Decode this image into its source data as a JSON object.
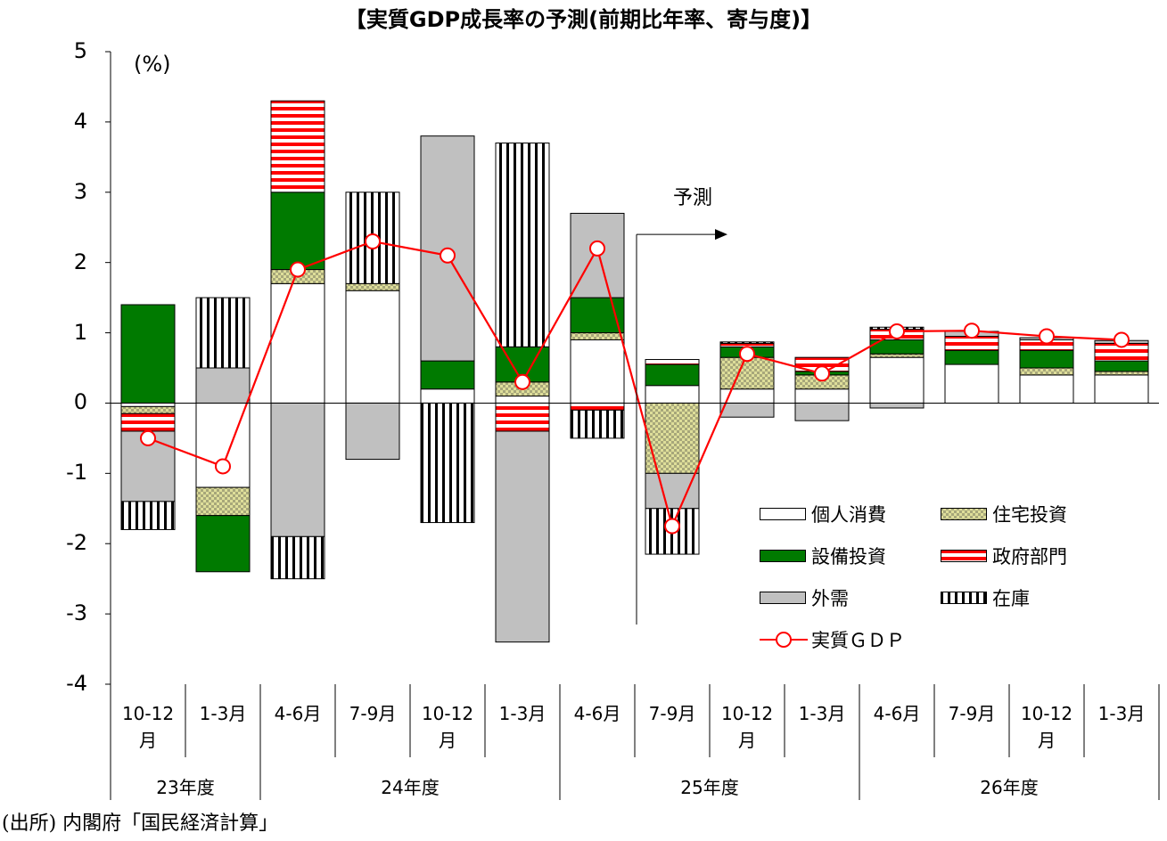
{
  "title": "【実質GDP成長率の予測(前期比年率、寄与度)】",
  "unit": "(%)",
  "forecast_label": "予測",
  "source": "(出所) 内閣府「国民経済計算」",
  "colors": {
    "consumption": "#ffffff",
    "housing": "#c8c896",
    "capex": "#008000",
    "government": "#ff0000",
    "exports": "#c0c0c0",
    "inventory": "#ffffff",
    "gdp_line": "#ff0000"
  },
  "chart_data": {
    "type": "bar",
    "stacked": true,
    "categories": [
      "10-12 月",
      "1-3月",
      "4-6月",
      "7-9月",
      "10-12 月",
      "1-3月",
      "4-6月",
      "7-9月",
      "10-12 月",
      "1-3月",
      "4-6月",
      "7-9月",
      "10-12 月",
      "1-3月"
    ],
    "category_lines": [
      [
        "10-12",
        "月"
      ],
      [
        "1-3月"
      ],
      [
        "4-6月"
      ],
      [
        "7-9月"
      ],
      [
        "10-12",
        "月"
      ],
      [
        "1-3月"
      ],
      [
        "4-6月"
      ],
      [
        "7-9月"
      ],
      [
        "10-12",
        "月"
      ],
      [
        "1-3月"
      ],
      [
        "4-6月"
      ],
      [
        "7-9月"
      ],
      [
        "10-12",
        "月"
      ],
      [
        "1-3月"
      ]
    ],
    "fiscal_years": [
      {
        "label": "23年度",
        "span": 2
      },
      {
        "label": "24年度",
        "span": 4
      },
      {
        "label": "25年度",
        "span": 4
      },
      {
        "label": "26年度",
        "span": 4
      }
    ],
    "ylim": [
      -4,
      5
    ],
    "yticks": [
      "5",
      "4",
      "3",
      "2",
      "1",
      "0",
      "-1",
      "-2",
      "-3",
      "-4"
    ],
    "forecast_start_index": 7,
    "series": [
      {
        "name": "個人消費",
        "key": "consumption",
        "values": [
          -0.05,
          -1.2,
          1.7,
          1.6,
          0.2,
          0.1,
          0.9,
          0.25,
          0.2,
          0.2,
          0.65,
          0.55,
          0.4,
          0.4
        ]
      },
      {
        "name": "住宅投資",
        "key": "housing",
        "values": [
          -0.1,
          -0.4,
          0.2,
          0.1,
          0,
          0.2,
          0.1,
          -1.0,
          0.45,
          0.2,
          0.05,
          0,
          0.1,
          0.05
        ]
      },
      {
        "name": "設備投資",
        "key": "capex",
        "values": [
          1.4,
          -0.8,
          1.1,
          0,
          0.4,
          0.5,
          0.5,
          0.3,
          0.15,
          0.05,
          0.2,
          0.2,
          0.25,
          0.15
        ]
      },
      {
        "name": "政府部門",
        "key": "government",
        "values": [
          -0.25,
          0,
          1.3,
          0,
          0,
          -0.4,
          -0.1,
          0.07,
          0.05,
          0.2,
          0.15,
          0.2,
          0.15,
          0.25
        ]
      },
      {
        "name": "外需",
        "key": "exports",
        "values": [
          -1.0,
          0.5,
          -1.9,
          -0.8,
          3.2,
          -3.0,
          1.2,
          -0.5,
          -0.2,
          -0.25,
          -0.07,
          0.07,
          0.03,
          0.04
        ]
      },
      {
        "name": "在庫",
        "key": "inventory",
        "values": [
          -0.4,
          1.0,
          -0.6,
          1.3,
          -1.7,
          2.9,
          -0.4,
          -0.65,
          0.02,
          0,
          0.03,
          0,
          0,
          0
        ]
      }
    ],
    "line": {
      "name": "実質ＧＤＰ",
      "values": [
        -0.5,
        -0.9,
        1.9,
        2.3,
        2.1,
        0.3,
        2.2,
        -1.75,
        0.7,
        0.42,
        1.02,
        1.03,
        0.95,
        0.9
      ]
    }
  },
  "legend": [
    {
      "name": "個人消費",
      "key": "consumption"
    },
    {
      "name": "住宅投資",
      "key": "housing"
    },
    {
      "name": "設備投資",
      "key": "capex"
    },
    {
      "name": "政府部門",
      "key": "government"
    },
    {
      "name": "外需",
      "key": "exports"
    },
    {
      "name": "在庫",
      "key": "inventory"
    },
    {
      "name": "実質ＧＤＰ",
      "key": "gdp_line"
    }
  ]
}
